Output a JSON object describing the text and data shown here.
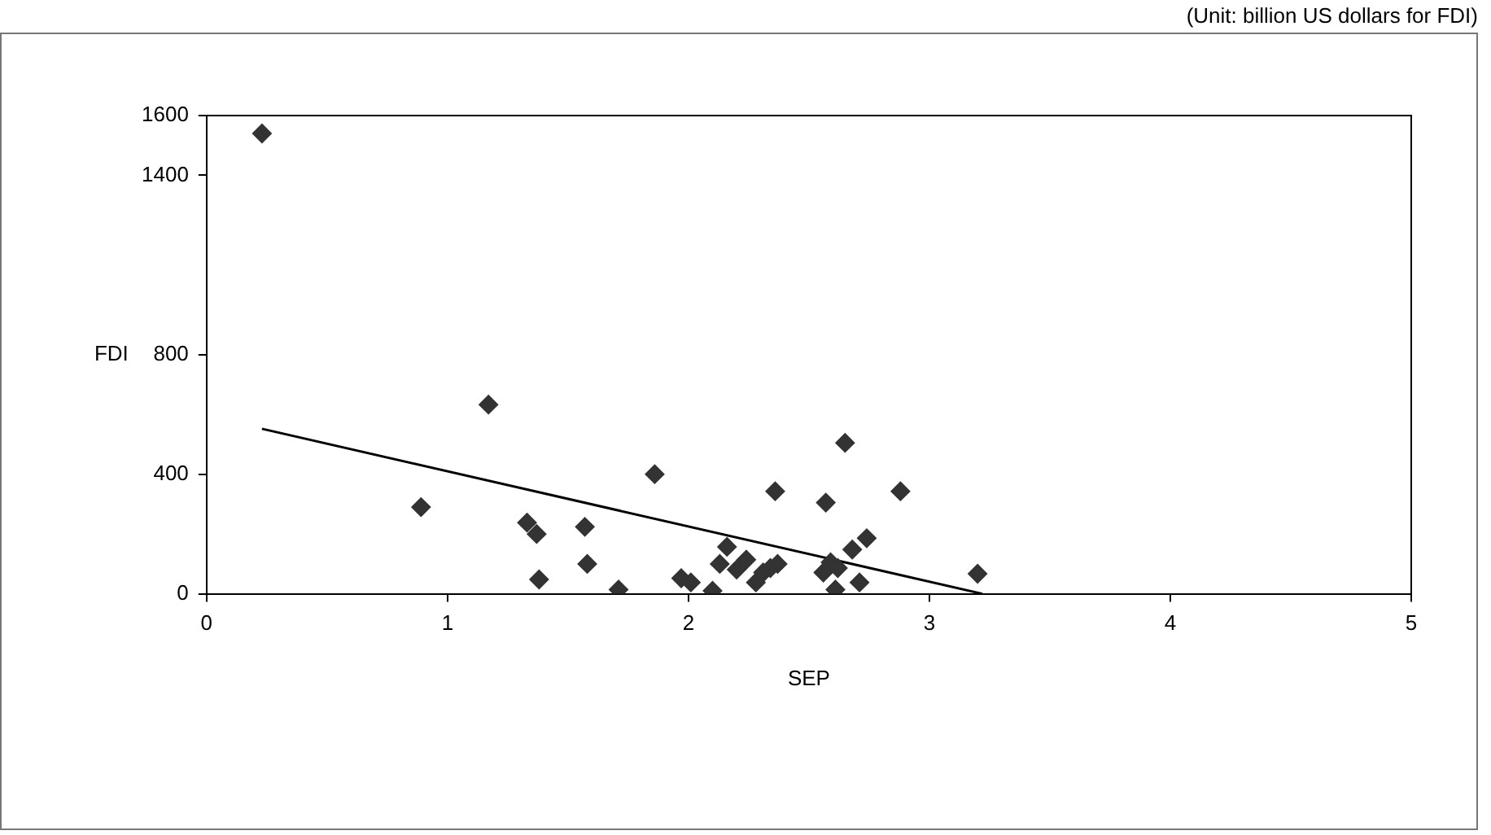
{
  "chart_data": {
    "type": "scatter",
    "xlabel": "SEP",
    "ylabel": "FDI",
    "annotations": [
      "(Unit: billion US dollars for FDI)"
    ],
    "xlim": [
      0,
      5
    ],
    "xticks": [
      0,
      1,
      2,
      3,
      4,
      5
    ],
    "ylim": [
      0,
      1600
    ],
    "yticks": [
      0,
      400,
      800,
      1400,
      1600
    ],
    "grid": false,
    "legend": false,
    "marker": "diamond",
    "series": [
      {
        "color": "#333333",
        "x": [
          0.23,
          0.89,
          1.17,
          1.33,
          1.37,
          1.38,
          1.57,
          1.58,
          1.71,
          1.86,
          1.97,
          2.01,
          2.1,
          2.13,
          2.16,
          2.2,
          2.24,
          2.28,
          2.31,
          2.34,
          2.37,
          2.36,
          2.56,
          2.57,
          2.59,
          2.61,
          2.62,
          2.65,
          2.68,
          2.71,
          2.74,
          2.88,
          3.2
        ],
        "values": [
          1540,
          290,
          633,
          238,
          200,
          48,
          224,
          100,
          14,
          400,
          52,
          38,
          10,
          100,
          157,
          81,
          114,
          38,
          71,
          86,
          100,
          343,
          71,
          305,
          105,
          14,
          86,
          505,
          148,
          38,
          186,
          343,
          67
        ]
      },
      {
        "type": "line",
        "marker": "none",
        "color": "#000000",
        "x": [
          0.23,
          3.22
        ],
        "values": [
          552,
          0
        ]
      }
    ]
  }
}
